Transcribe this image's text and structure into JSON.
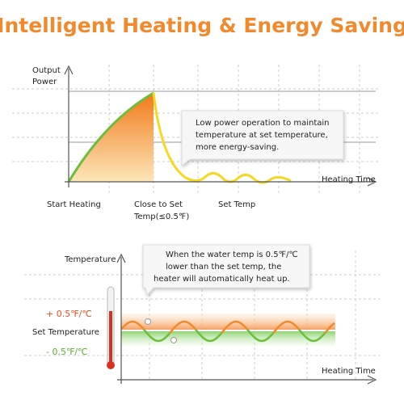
{
  "header": {
    "title": "Intelligent Heating & Energy Saving"
  },
  "top_chart": {
    "y_label": [
      "Output",
      "Power"
    ],
    "x_label": "Heating Time",
    "callout": [
      "Low power operation to maintain",
      "temperature at set temperature,",
      "more energy-saving."
    ],
    "stages": {
      "start": "Start Heating",
      "close": [
        "Close to Set",
        "Temp(≤0.5℉)"
      ],
      "set": "Set Temp"
    }
  },
  "bottom_chart": {
    "y_label": "Temperature",
    "x_label": "Heating Time",
    "callout": [
      "When the water temp is 0.5℉/℃",
      "lower than the set temp, the",
      "heater will automatically heat up."
    ],
    "upper": "+ 0.5℉/℃",
    "set": "Set Temperature",
    "lower": "- 0.5℉/℃"
  }
}
